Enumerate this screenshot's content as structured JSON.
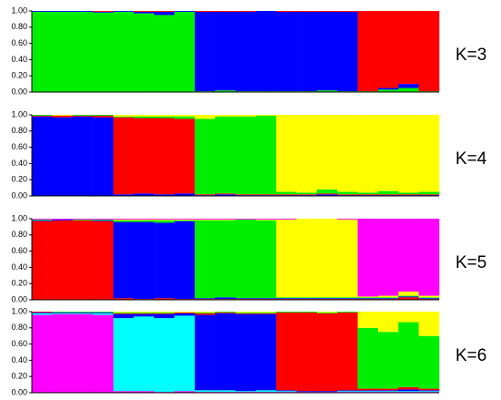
{
  "chart_data": [
    {
      "type": "bar",
      "stacked": true,
      "title": "K=3",
      "ylim": [
        0,
        1
      ],
      "yticks": [
        {
          "value": 0,
          "label": "0.00"
        },
        {
          "value": 0.2,
          "label": "0.20"
        },
        {
          "value": 0.4,
          "label": "0.40"
        },
        {
          "value": 0.6,
          "label": "0.60"
        },
        {
          "value": 0.8,
          "label": "0.80"
        },
        {
          "value": 1,
          "label": "1.00"
        }
      ],
      "series": [
        {
          "color": "#00ee00",
          "values": [
            0.99,
            0.99,
            0.99,
            0.98,
            0.99,
            0.97,
            0.95,
            0.99,
            0.01,
            0.02,
            0.01,
            0.01,
            0.01,
            0.01,
            0.02,
            0.01,
            0.01,
            0.03,
            0.05,
            0.01
          ]
        },
        {
          "color": "#0000ff",
          "values": [
            0.01,
            0.01,
            0.01,
            0.01,
            0.01,
            0.02,
            0.04,
            0.01,
            0.98,
            0.97,
            0.98,
            0.99,
            0.98,
            0.98,
            0.97,
            0.98,
            0,
            0.02,
            0.05,
            0
          ]
        },
        {
          "color": "#ff0000",
          "values": [
            0,
            0,
            0,
            0.01,
            0,
            0.01,
            0.01,
            0,
            0.01,
            0.01,
            0.01,
            0,
            0.01,
            0.01,
            0.01,
            0.01,
            0.99,
            0.95,
            0.9,
            0.99
          ]
        }
      ]
    },
    {
      "type": "bar",
      "stacked": true,
      "title": "K=4",
      "ylim": [
        0,
        1
      ],
      "yticks": [
        {
          "value": 0,
          "label": "0.00"
        },
        {
          "value": 0.2,
          "label": "0.20"
        },
        {
          "value": 0.4,
          "label": "0.40"
        },
        {
          "value": 0.6,
          "label": "0.60"
        },
        {
          "value": 0.8,
          "label": "0.80"
        },
        {
          "value": 1,
          "label": "1.00"
        }
      ],
      "series": [
        {
          "color": "#0000ff",
          "values": [
            0.98,
            0.97,
            0.98,
            0.97,
            0.02,
            0.03,
            0.02,
            0.03,
            0.01,
            0.02,
            0.01,
            0.01,
            0.01,
            0.01,
            0.02,
            0.01,
            0.01,
            0.01,
            0.01,
            0.01
          ]
        },
        {
          "color": "#ff0000",
          "values": [
            0.01,
            0.02,
            0.01,
            0.02,
            0.95,
            0.93,
            0.94,
            0.92,
            0.01,
            0.01,
            0.01,
            0.01,
            0.01,
            0.01,
            0.01,
            0.01,
            0.01,
            0.01,
            0.01,
            0.01
          ]
        },
        {
          "color": "#00ee00",
          "values": [
            0.01,
            0,
            0.01,
            0.01,
            0.01,
            0.02,
            0.02,
            0.03,
            0.93,
            0.95,
            0.96,
            0.97,
            0.03,
            0.02,
            0.05,
            0.03,
            0.02,
            0.04,
            0.02,
            0.03
          ]
        },
        {
          "color": "#ffff00",
          "values": [
            0,
            0.01,
            0,
            0,
            0.02,
            0.02,
            0.02,
            0.02,
            0.05,
            0.02,
            0.02,
            0.01,
            0.95,
            0.96,
            0.92,
            0.95,
            0.96,
            0.94,
            0.96,
            0.95
          ]
        }
      ]
    },
    {
      "type": "bar",
      "stacked": true,
      "title": "K=5",
      "ylim": [
        0,
        1
      ],
      "yticks": [
        {
          "value": 0,
          "label": "0.00"
        },
        {
          "value": 0.2,
          "label": "0.20"
        },
        {
          "value": 0.4,
          "label": "0.40"
        },
        {
          "value": 0.6,
          "label": "0.60"
        },
        {
          "value": 0.8,
          "label": "0.80"
        },
        {
          "value": 1,
          "label": "1.00"
        }
      ],
      "series": [
        {
          "color": "#ff0000",
          "values": [
            0.97,
            0.98,
            0.98,
            0.97,
            0.02,
            0.01,
            0.02,
            0.01,
            0.01,
            0.01,
            0.01,
            0.01,
            0.01,
            0.01,
            0.01,
            0.01,
            0.01,
            0.01,
            0.03,
            0.01
          ]
        },
        {
          "color": "#0000ff",
          "values": [
            0.01,
            0.01,
            0,
            0.01,
            0.94,
            0.95,
            0.93,
            0.96,
            0.01,
            0.02,
            0.01,
            0.01,
            0.01,
            0.01,
            0.01,
            0.01,
            0.01,
            0.01,
            0.01,
            0.01
          ]
        },
        {
          "color": "#00ee00",
          "values": [
            0.01,
            0,
            0.01,
            0.01,
            0.02,
            0.02,
            0.03,
            0.01,
            0.96,
            0.95,
            0.97,
            0.96,
            0.01,
            0.01,
            0.01,
            0.01,
            0.01,
            0.01,
            0.01,
            0.01
          ]
        },
        {
          "color": "#ffff00",
          "values": [
            0,
            0,
            0,
            0,
            0.01,
            0.01,
            0.01,
            0.01,
            0.01,
            0.01,
            0,
            0.01,
            0.96,
            0.97,
            0.97,
            0.96,
            0.01,
            0.02,
            0.05,
            0.02
          ]
        },
        {
          "color": "#ff00ff",
          "values": [
            0.01,
            0.01,
            0.01,
            0.01,
            0.01,
            0.01,
            0.01,
            0.01,
            0.01,
            0.01,
            0.01,
            0.01,
            0.01,
            0,
            0,
            0.01,
            0.96,
            0.95,
            0.9,
            0.95
          ]
        }
      ]
    },
    {
      "type": "bar",
      "stacked": true,
      "title": "K=6",
      "ylim": [
        0,
        1
      ],
      "yticks": [
        {
          "value": 0,
          "label": "0.00"
        },
        {
          "value": 0.2,
          "label": "0.20"
        },
        {
          "value": 0.4,
          "label": "0.40"
        },
        {
          "value": 0.6,
          "label": "0.60"
        },
        {
          "value": 0.8,
          "label": "0.80"
        },
        {
          "value": 1,
          "label": "1.00"
        }
      ],
      "series": [
        {
          "color": "#ff00ff",
          "values": [
            0.96,
            0.97,
            0.97,
            0.96,
            0.02,
            0.02,
            0.01,
            0.02,
            0.01,
            0.01,
            0.01,
            0.01,
            0.01,
            0.01,
            0.01,
            0.01,
            0.01,
            0.01,
            0.01,
            0.01
          ]
        },
        {
          "color": "#00ffff",
          "values": [
            0.02,
            0.01,
            0.01,
            0.02,
            0.9,
            0.92,
            0.91,
            0.93,
            0.02,
            0.02,
            0.01,
            0.02,
            0.01,
            0,
            0,
            0.01,
            0.01,
            0.01,
            0.01,
            0.01
          ]
        },
        {
          "color": "#0000ff",
          "values": [
            0.01,
            0.01,
            0.01,
            0.01,
            0.05,
            0.03,
            0.05,
            0.03,
            0.93,
            0.95,
            0.95,
            0.94,
            0.01,
            0.01,
            0.01,
            0.01,
            0.01,
            0.01,
            0.02,
            0.01
          ]
        },
        {
          "color": "#ff0000",
          "values": [
            0.01,
            0,
            0,
            0,
            0.01,
            0.01,
            0.01,
            0.01,
            0.02,
            0.01,
            0.01,
            0.01,
            0.96,
            0.97,
            0.96,
            0.96,
            0.02,
            0.02,
            0.03,
            0.02
          ]
        },
        {
          "color": "#00ee00",
          "values": [
            0,
            0.01,
            0.01,
            0.01,
            0.01,
            0.01,
            0.01,
            0,
            0.01,
            0.01,
            0.01,
            0.01,
            0.01,
            0.01,
            0.01,
            0.01,
            0.75,
            0.7,
            0.8,
            0.65
          ]
        },
        {
          "color": "#ffff00",
          "values": [
            0,
            0,
            0,
            0,
            0.01,
            0.01,
            0.01,
            0.01,
            0.01,
            0,
            0.01,
            0.01,
            0,
            0,
            0.01,
            0,
            0.2,
            0.25,
            0.13,
            0.3
          ]
        }
      ]
    }
  ]
}
